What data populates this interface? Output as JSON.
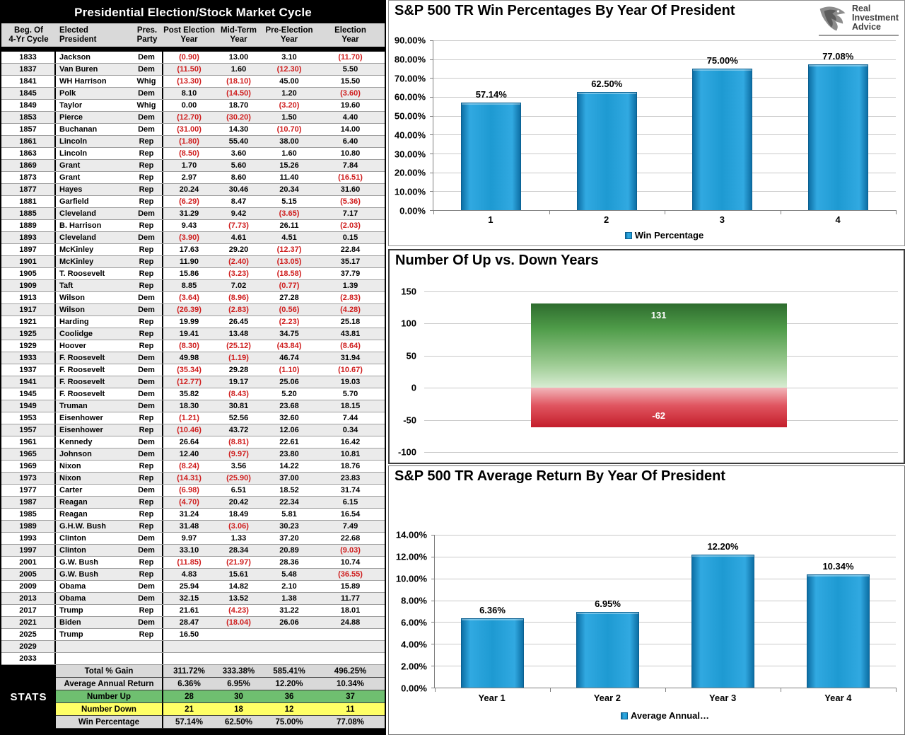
{
  "table": {
    "title": "Presidential Election/Stock Market Cycle",
    "headers": [
      [
        "Beg. Of",
        "4-Yr Cycle"
      ],
      [
        "Elected",
        "President"
      ],
      [
        "Pres.",
        "Party"
      ],
      [
        "Post Election",
        "Year"
      ],
      [
        "Mid-Term",
        "Year"
      ],
      [
        "Pre-Election",
        "Year"
      ],
      [
        "Election",
        "Year"
      ]
    ],
    "rows": [
      [
        "1833",
        "Jackson",
        "Dem",
        "(0.90)",
        "13.00",
        "3.10",
        "(11.70)"
      ],
      [
        "1837",
        "Van Buren",
        "Dem",
        "(11.50)",
        "1.60",
        "(12.30)",
        "5.50"
      ],
      [
        "1841",
        "WH Harrison",
        "Whig",
        "(13.30)",
        "(18.10)",
        "45.00",
        "15.50"
      ],
      [
        "1845",
        "Polk",
        "Dem",
        "8.10",
        "(14.50)",
        "1.20",
        "(3.60)"
      ],
      [
        "1849",
        "Taylor",
        "Whig",
        "0.00",
        "18.70",
        "(3.20)",
        "19.60"
      ],
      [
        "1853",
        "Pierce",
        "Dem",
        "(12.70)",
        "(30.20)",
        "1.50",
        "4.40"
      ],
      [
        "1857",
        "Buchanan",
        "Dem",
        "(31.00)",
        "14.30",
        "(10.70)",
        "14.00"
      ],
      [
        "1861",
        "Lincoln",
        "Rep",
        "(1.80)",
        "55.40",
        "38.00",
        "6.40"
      ],
      [
        "1863",
        "Lincoln",
        "Rep",
        "(8.50)",
        "3.60",
        "1.60",
        "10.80"
      ],
      [
        "1869",
        "Grant",
        "Rep",
        "1.70",
        "5.60",
        "15.26",
        "7.84"
      ],
      [
        "1873",
        "Grant",
        "Rep",
        "2.97",
        "8.60",
        "11.40",
        "(16.51)"
      ],
      [
        "1877",
        "Hayes",
        "Rep",
        "20.24",
        "30.46",
        "20.34",
        "31.60"
      ],
      [
        "1881",
        "Garfield",
        "Rep",
        "(6.29)",
        "8.47",
        "5.15",
        "(5.36)"
      ],
      [
        "1885",
        "Cleveland",
        "Dem",
        "31.29",
        "9.42",
        "(3.65)",
        "7.17"
      ],
      [
        "1889",
        "B. Harrison",
        "Rep",
        "9.43",
        "(7.73)",
        "26.11",
        "(2.03)"
      ],
      [
        "1893",
        "Cleveland",
        "Dem",
        "(3.90)",
        "4.61",
        "4.51",
        "0.15"
      ],
      [
        "1897",
        "McKinley",
        "Rep",
        "17.63",
        "29.20",
        "(12.37)",
        "22.84"
      ],
      [
        "1901",
        "McKinley",
        "Rep",
        "11.90",
        "(2.40)",
        "(13.05)",
        "35.17"
      ],
      [
        "1905",
        "T. Roosevelt",
        "Rep",
        "15.86",
        "(3.23)",
        "(18.58)",
        "37.79"
      ],
      [
        "1909",
        "Taft",
        "Rep",
        "8.85",
        "7.02",
        "(0.77)",
        "1.39"
      ],
      [
        "1913",
        "Wilson",
        "Dem",
        "(3.64)",
        "(8.96)",
        "27.28",
        "(2.83)"
      ],
      [
        "1917",
        "Wilson",
        "Dem",
        "(26.39)",
        "(2.83)",
        "(0.56)",
        "(4.28)"
      ],
      [
        "1921",
        "Harding",
        "Rep",
        "19.99",
        "26.45",
        "(2.23)",
        "25.18"
      ],
      [
        "1925",
        "Coolidge",
        "Rep",
        "19.41",
        "13.48",
        "34.75",
        "43.81"
      ],
      [
        "1929",
        "Hoover",
        "Rep",
        "(8.30)",
        "(25.12)",
        "(43.84)",
        "(8.64)"
      ],
      [
        "1933",
        "F. Roosevelt",
        "Dem",
        "49.98",
        "(1.19)",
        "46.74",
        "31.94"
      ],
      [
        "1937",
        "F. Roosevelt",
        "Dem",
        "(35.34)",
        "29.28",
        "(1.10)",
        "(10.67)"
      ],
      [
        "1941",
        "F. Roosevelt",
        "Dem",
        "(12.77)",
        "19.17",
        "25.06",
        "19.03"
      ],
      [
        "1945",
        "F. Roosevelt",
        "Dem",
        "35.82",
        "(8.43)",
        "5.20",
        "5.70"
      ],
      [
        "1949",
        "Truman",
        "Dem",
        "18.30",
        "30.81",
        "23.68",
        "18.15"
      ],
      [
        "1953",
        "Eisenhower",
        "Rep",
        "(1.21)",
        "52.56",
        "32.60",
        "7.44"
      ],
      [
        "1957",
        "Eisenhower",
        "Rep",
        "(10.46)",
        "43.72",
        "12.06",
        "0.34"
      ],
      [
        "1961",
        "Kennedy",
        "Dem",
        "26.64",
        "(8.81)",
        "22.61",
        "16.42"
      ],
      [
        "1965",
        "Johnson",
        "Dem",
        "12.40",
        "(9.97)",
        "23.80",
        "10.81"
      ],
      [
        "1969",
        "Nixon",
        "Rep",
        "(8.24)",
        "3.56",
        "14.22",
        "18.76"
      ],
      [
        "1973",
        "Nixon",
        "Rep",
        "(14.31)",
        "(25.90)",
        "37.00",
        "23.83"
      ],
      [
        "1977",
        "Carter",
        "Dem",
        "(6.98)",
        "6.51",
        "18.52",
        "31.74"
      ],
      [
        "1987",
        "Reagan",
        "Rep",
        "(4.70)",
        "20.42",
        "22.34",
        "6.15"
      ],
      [
        "1985",
        "Reagan",
        "Rep",
        "31.24",
        "18.49",
        "5.81",
        "16.54"
      ],
      [
        "1989",
        "G.H.W. Bush",
        "Rep",
        "31.48",
        "(3.06)",
        "30.23",
        "7.49"
      ],
      [
        "1993",
        "Clinton",
        "Dem",
        "9.97",
        "1.33",
        "37.20",
        "22.68"
      ],
      [
        "1997",
        "Clinton",
        "Dem",
        "33.10",
        "28.34",
        "20.89",
        "(9.03)"
      ],
      [
        "2001",
        "G.W. Bush",
        "Rep",
        "(11.85)",
        "(21.97)",
        "28.36",
        "10.74"
      ],
      [
        "2005",
        "G.W. Bush",
        "Rep",
        "4.83",
        "15.61",
        "5.48",
        "(36.55)"
      ],
      [
        "2009",
        "Obama",
        "Dem",
        "25.94",
        "14.82",
        "2.10",
        "15.89"
      ],
      [
        "2013",
        "Obama",
        "Dem",
        "32.15",
        "13.52",
        "1.38",
        "11.77"
      ],
      [
        "2017",
        "Trump",
        "Rep",
        "21.61",
        "(4.23)",
        "31.22",
        "18.01"
      ],
      [
        "2021",
        "Biden",
        "Dem",
        "28.47",
        "(18.04)",
        "26.06",
        "24.88"
      ],
      [
        "2025",
        "Trump",
        "Rep",
        "16.50",
        "",
        "",
        ""
      ],
      [
        "2029",
        "",
        "",
        "",
        "",
        "",
        ""
      ],
      [
        "2033",
        "",
        "",
        "",
        "",
        "",
        ""
      ]
    ],
    "stats": {
      "corner_label": "STATS",
      "rows": [
        {
          "label": "Total % Gain",
          "values": [
            "311.72%",
            "333.38%",
            "585.41%",
            "496.25%"
          ],
          "bg": "gray"
        },
        {
          "label": "Average Annual Return",
          "values": [
            "6.36%",
            "6.95%",
            "12.20%",
            "10.34%"
          ],
          "bg": "gray"
        },
        {
          "label": "Number Up",
          "values": [
            "28",
            "30",
            "36",
            "37"
          ],
          "bg": "green"
        },
        {
          "label": "Number Down",
          "values": [
            "21",
            "18",
            "12",
            "11"
          ],
          "bg": "yellow"
        },
        {
          "label": "Win Percentage",
          "values": [
            "57.14%",
            "62.50%",
            "75.00%",
            "77.08%"
          ],
          "bg": "gray"
        }
      ]
    }
  },
  "logo": {
    "line1": "Real",
    "line2": "Investment",
    "line3": "Advice"
  },
  "colors": {
    "bar_blue": "#1E9AD2",
    "up_green": "#3A7D36",
    "down_red": "#C41E2B",
    "negative_text": "#CF1D1D",
    "stats_green": "#6FBF70",
    "stats_yellow": "#FFFF66"
  },
  "chart_data": [
    {
      "type": "bar",
      "title": "S&P 500 TR Win Percentages By Year Of President",
      "legend": "Win Percentage",
      "categories": [
        "1",
        "2",
        "3",
        "4"
      ],
      "values": [
        57.14,
        62.5,
        75.0,
        77.08
      ],
      "value_labels": [
        "57.14%",
        "62.50%",
        "75.00%",
        "77.08%"
      ],
      "ylim": [
        0,
        90
      ],
      "yticks": [
        {
          "v": 0,
          "t": "0.00%"
        },
        {
          "v": 10,
          "t": "10.00%"
        },
        {
          "v": 20,
          "t": "20.00%"
        },
        {
          "v": 30,
          "t": "30.00%"
        },
        {
          "v": 40,
          "t": "40.00%"
        },
        {
          "v": 50,
          "t": "50.00%"
        },
        {
          "v": 60,
          "t": "60.00%"
        },
        {
          "v": 70,
          "t": "70.00%"
        },
        {
          "v": 80,
          "t": "80.00%"
        },
        {
          "v": 90,
          "t": "90.00%"
        }
      ],
      "grid": true,
      "legend_position": "bottom"
    },
    {
      "type": "bar",
      "title": "Number Of Up vs. Down Years",
      "categories": [
        "Up",
        "Down"
      ],
      "values": [
        131,
        -62
      ],
      "value_labels": [
        "131",
        "-62"
      ],
      "ylim": [
        -100,
        150
      ],
      "yticks": [
        {
          "v": 150,
          "t": "150"
        },
        {
          "v": 100,
          "t": "100"
        },
        {
          "v": 50,
          "t": "50"
        },
        {
          "v": 0,
          "t": "0"
        },
        {
          "v": -50,
          "t": "-50"
        },
        {
          "v": -100,
          "t": "-100"
        }
      ],
      "grid": true
    },
    {
      "type": "bar",
      "title": "S&P 500 TR Average Return By Year Of President",
      "legend": "Average Annual…",
      "categories": [
        "Year 1",
        "Year 2",
        "Year 3",
        "Year 4"
      ],
      "values": [
        6.36,
        6.95,
        12.2,
        10.34
      ],
      "value_labels": [
        "6.36%",
        "6.95%",
        "12.20%",
        "10.34%"
      ],
      "ylim": [
        0,
        14
      ],
      "yticks": [
        {
          "v": 0,
          "t": "0.00%"
        },
        {
          "v": 2,
          "t": "2.00%"
        },
        {
          "v": 4,
          "t": "4.00%"
        },
        {
          "v": 6,
          "t": "6.00%"
        },
        {
          "v": 8,
          "t": "8.00%"
        },
        {
          "v": 10,
          "t": "10.00%"
        },
        {
          "v": 12,
          "t": "12.00%"
        },
        {
          "v": 14,
          "t": "14.00%"
        }
      ],
      "grid": true,
      "legend_position": "bottom"
    }
  ]
}
